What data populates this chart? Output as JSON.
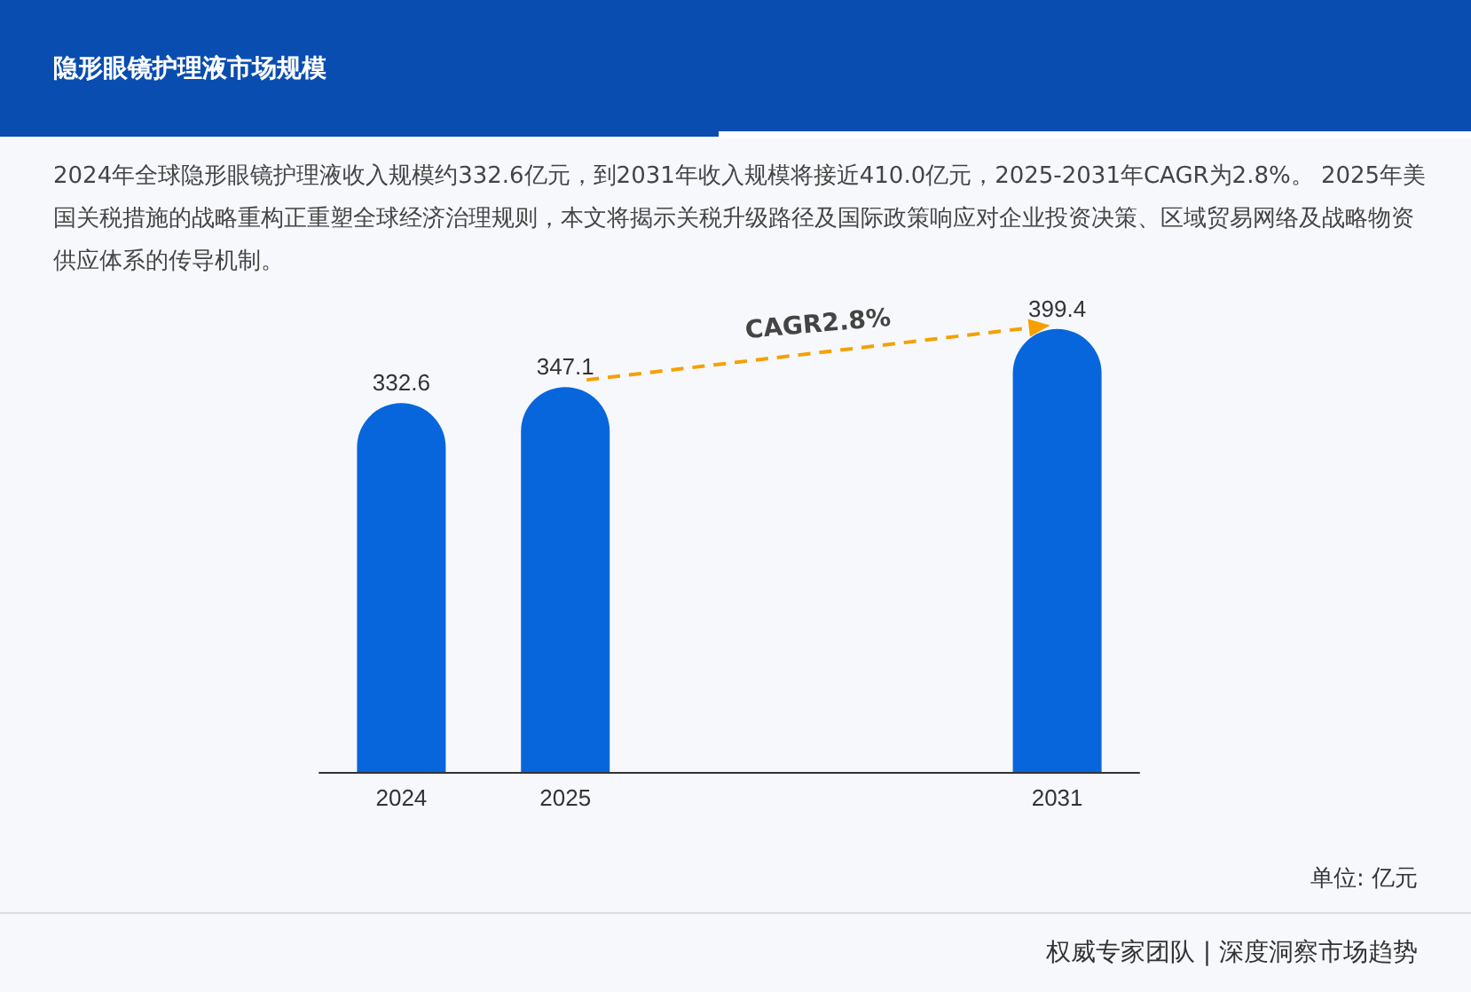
{
  "chart_data": {
    "type": "bar",
    "title": "隐形眼镜护理液市场规模",
    "subtitle": "2024年全球隐形眼镜护理液收入规模约332.6亿元，到2031年收入规模将接近410.0亿元，2025-2031年CAGR为2.8%。 2025年美国关税措施的战略重构正重塑全球经济治理规则，本文将揭示关税升级路径及国际政策响应对企业投资决策、区域贸易网络及战略物资供应体系的传导机制。",
    "categories": [
      "2024",
      "2025",
      null,
      null,
      "2031"
    ],
    "values": [
      332.6,
      347.1,
      null,
      null,
      399.4
    ],
    "color": "#0866dc",
    "data_labels": true,
    "annotations": [
      "CAGR2.8%",
      "单位: 亿元",
      "权威专家团队 | 深度洞察市场趋势"
    ]
  }
}
